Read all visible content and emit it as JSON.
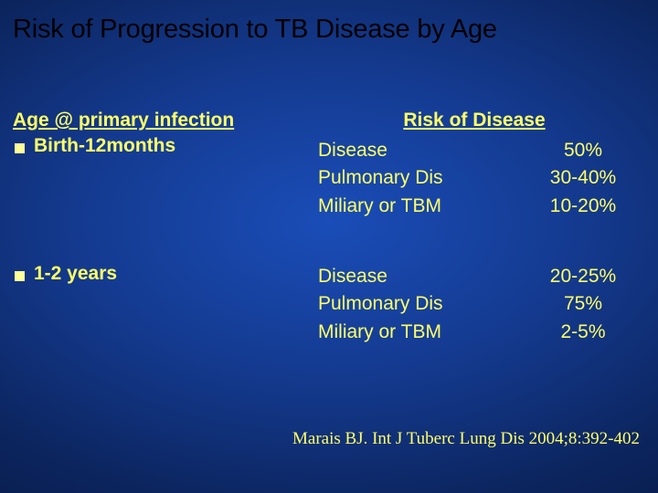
{
  "slide": {
    "background_gradient": [
      "#1a4db8",
      "#143a8f",
      "#0c255f",
      "#06153a"
    ],
    "text_color": "#ffff66",
    "title_color": "#000000"
  },
  "title": "Risk of Progression to TB Disease by Age",
  "left": {
    "header": "Age @ primary infection",
    "groups": [
      {
        "label": "Birth-12months"
      },
      {
        "label": "1-2 years"
      }
    ]
  },
  "right": {
    "header": "Risk of Disease",
    "blocks": [
      {
        "rows": [
          {
            "label": "Disease",
            "value": "50%"
          },
          {
            "label": "Pulmonary Dis",
            "value": "30-40%"
          },
          {
            "label": "Miliary or TBM",
            "value": "10-20%"
          }
        ]
      },
      {
        "rows": [
          {
            "label": "Disease",
            "value": "20-25%"
          },
          {
            "label": "Pulmonary Dis",
            "value": "75%"
          },
          {
            "label": "Miliary or TBM",
            "value": "2-5%"
          }
        ]
      }
    ]
  },
  "citation": "Marais BJ. Int J Tuberc Lung Dis 2004;8:392-402"
}
